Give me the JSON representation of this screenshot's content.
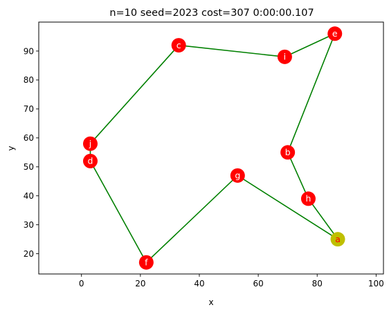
{
  "chart_data": {
    "type": "scatter",
    "title": "n=10 seed=2023 cost=307 0:00:00.107",
    "xlabel": "x",
    "ylabel": "y",
    "xlim": [
      -14.5,
      102.5
    ],
    "ylim": [
      13,
      100
    ],
    "xticks": [
      0,
      20,
      40,
      60,
      80,
      100
    ],
    "yticks": [
      20,
      30,
      40,
      50,
      60,
      70,
      80,
      90
    ],
    "grid": false,
    "points": [
      {
        "label": "a",
        "x": 87,
        "y": 25
      },
      {
        "label": "b",
        "x": 70,
        "y": 55
      },
      {
        "label": "c",
        "x": 33,
        "y": 92
      },
      {
        "label": "d",
        "x": 3,
        "y": 52
      },
      {
        "label": "e",
        "x": 86,
        "y": 96
      },
      {
        "label": "f",
        "x": 22,
        "y": 17
      },
      {
        "label": "g",
        "x": 53,
        "y": 47
      },
      {
        "label": "h",
        "x": 77,
        "y": 39
      },
      {
        "label": "i",
        "x": 69,
        "y": 88
      },
      {
        "label": "j",
        "x": 3,
        "y": 58
      }
    ],
    "tour": [
      "a",
      "h",
      "b",
      "e",
      "i",
      "c",
      "j",
      "d",
      "f",
      "g",
      "a"
    ],
    "start": "a",
    "colors": {
      "path": "#008000",
      "node": "#ff0000",
      "start_node": "#bfbf00",
      "node_label": "#ffffff",
      "start_label": "#ff0000"
    }
  }
}
